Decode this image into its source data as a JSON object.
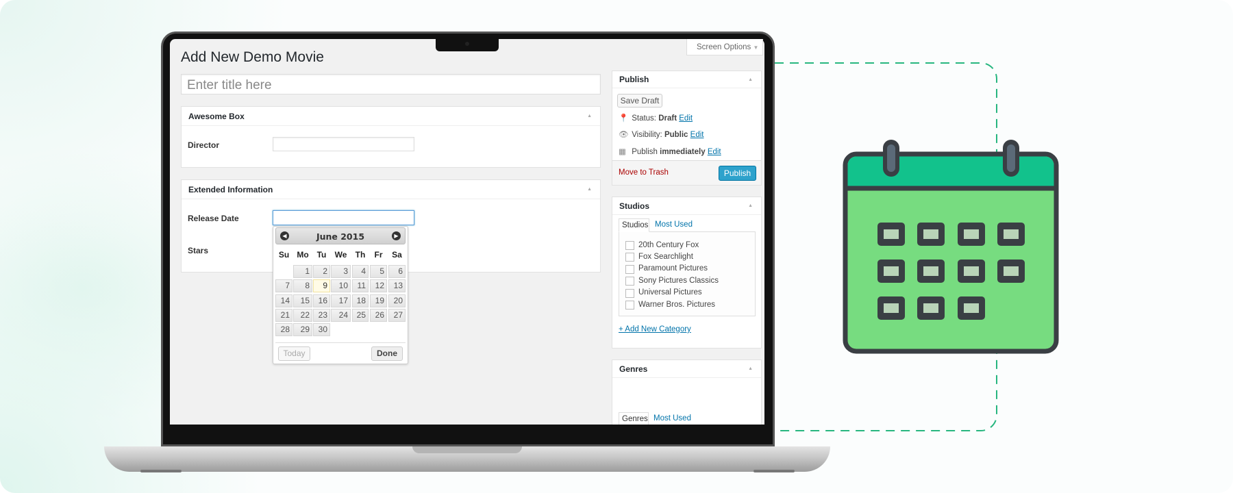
{
  "editor": {
    "page_title": "Add New Demo Movie",
    "title_placeholder": "Enter title here",
    "screen_options": "Screen Options"
  },
  "awesome_box": {
    "title": "Awesome Box",
    "director_label": "Director",
    "director_value": ""
  },
  "extended": {
    "title": "Extended Information",
    "release_label": "Release Date",
    "release_value": "",
    "stars_label": "Stars"
  },
  "datepicker": {
    "month_title": "June 2015",
    "weekdays": [
      "Su",
      "Mo",
      "Tu",
      "We",
      "Th",
      "Fr",
      "Sa"
    ],
    "weeks": [
      [
        null,
        1,
        2,
        3,
        4,
        5,
        6
      ],
      [
        7,
        8,
        9,
        10,
        11,
        12,
        13
      ],
      [
        14,
        15,
        16,
        17,
        18,
        19,
        20
      ],
      [
        21,
        22,
        23,
        24,
        25,
        26,
        27
      ],
      [
        28,
        29,
        30,
        null,
        null,
        null,
        null
      ]
    ],
    "highlighted_day": 9,
    "today_label": "Today",
    "done_label": "Done"
  },
  "publish": {
    "title": "Publish",
    "save_draft": "Save Draft",
    "status_label": "Status:",
    "status_value": "Draft",
    "visibility_label": "Visibility:",
    "visibility_value": "Public",
    "schedule_label": "Publish",
    "schedule_value": "immediately",
    "edit": "Edit",
    "trash": "Move to Trash",
    "publish_button": "Publish"
  },
  "studios": {
    "title": "Studios",
    "tabs": [
      "Studios",
      "Most Used"
    ],
    "items": [
      "20th Century Fox",
      "Fox Searchlight",
      "Paramount Pictures",
      "Sony Pictures Classics",
      "Universal Pictures",
      "Warner Bros. Pictures"
    ],
    "add_new": "+ Add New Category"
  },
  "genres": {
    "title": "Genres",
    "tabs": [
      "Genres",
      "Most Used"
    ]
  },
  "colors": {
    "wp_blue": "#0073aa",
    "publish_button": "#2ea2cc",
    "trash": "#a00",
    "calendar_header": "#12c28c",
    "calendar_body": "#77dc80",
    "dashed_line": "#27b67f"
  }
}
